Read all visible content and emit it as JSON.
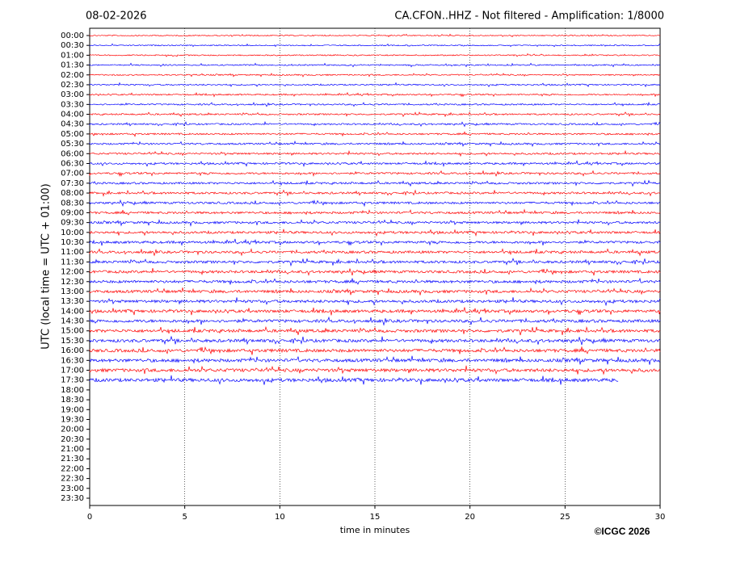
{
  "chart_data": {
    "type": "helicorder",
    "date": "08-02-2026",
    "title": "CA.CFON..HHZ - Not filtered - Amplification: 1/8000",
    "ylabel": "UTC (local time = UTC + 01:00)",
    "xlabel": "time in minutes",
    "copyright": "©ICGC 2026",
    "rows": [
      "00:00",
      "00:30",
      "01:00",
      "01:30",
      "02:00",
      "02:30",
      "03:00",
      "03:30",
      "04:00",
      "04:30",
      "05:00",
      "05:30",
      "06:00",
      "06:30",
      "07:00",
      "07:30",
      "08:00",
      "08:30",
      "09:00",
      "09:30",
      "10:00",
      "10:30",
      "11:00",
      "11:30",
      "12:00",
      "12:30",
      "13:00",
      "13:30",
      "14:00",
      "14:30",
      "15:00",
      "15:30",
      "16:00",
      "16:30",
      "17:00",
      "17:30",
      "18:00",
      "18:30",
      "19:00",
      "19:30",
      "20:00",
      "20:30",
      "21:00",
      "21:30",
      "22:00",
      "22:30",
      "23:00",
      "23:30"
    ],
    "trace_end": [
      30,
      30,
      30,
      30,
      30,
      30,
      30,
      30,
      30,
      30,
      30,
      30,
      30,
      30,
      30,
      30,
      30,
      30,
      30,
      30,
      30,
      30,
      30,
      30,
      30,
      30,
      30,
      30,
      30,
      30,
      30,
      30,
      30,
      30,
      30,
      27.8,
      null,
      null,
      null,
      null,
      null,
      null,
      null,
      null,
      null,
      null,
      null,
      null
    ],
    "colors": [
      "#ff0000",
      "#0000ff"
    ],
    "xlim": [
      0,
      30
    ],
    "xticks": [
      0,
      5,
      10,
      15,
      20,
      25,
      30
    ],
    "grid": true
  }
}
